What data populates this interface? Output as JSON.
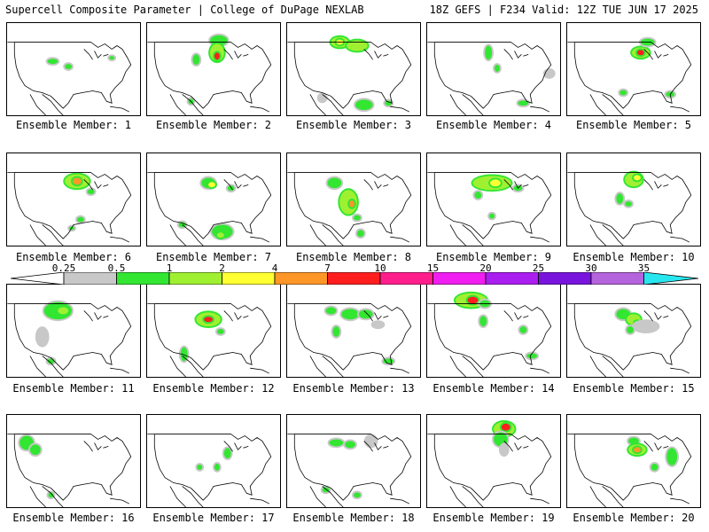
{
  "header": {
    "left": "Supercell Composite Parameter | College of DuPage NEXLAB",
    "right": "18Z GEFS | F234 Valid: 12Z TUE JUN 17 2025"
  },
  "member_prefix": "Ensemble Member: ",
  "members": [
    {
      "label": "Ensemble Member: 1"
    },
    {
      "label": "Ensemble Member: 2"
    },
    {
      "label": "Ensemble Member: 3"
    },
    {
      "label": "Ensemble Member: 4"
    },
    {
      "label": "Ensemble Member: 5"
    },
    {
      "label": "Ensemble Member: 6"
    },
    {
      "label": "Ensemble Member: 7"
    },
    {
      "label": "Ensemble Member: 8"
    },
    {
      "label": "Ensemble Member: 9"
    },
    {
      "label": "Ensemble Member: 10"
    },
    {
      "label": "Ensemble Member: 11"
    },
    {
      "label": "Ensemble Member: 12"
    },
    {
      "label": "Ensemble Member: 13"
    },
    {
      "label": "Ensemble Member: 14"
    },
    {
      "label": "Ensemble Member: 15"
    },
    {
      "label": "Ensemble Member: 16"
    },
    {
      "label": "Ensemble Member: 17"
    },
    {
      "label": "Ensemble Member: 18"
    },
    {
      "label": "Ensemble Member: 19"
    },
    {
      "label": "Ensemble Member: 20"
    }
  ],
  "colorbar": {
    "ticks": [
      "0.25",
      "0.5",
      "1",
      "2",
      "4",
      "7",
      "10",
      "15",
      "20",
      "25",
      "30",
      "35"
    ],
    "colors": [
      "#ffffff",
      "#c8c8c8",
      "#32e632",
      "#a0f032",
      "#ffff32",
      "#ff9628",
      "#ff1e1e",
      "#ff1e8c",
      "#f01ef0",
      "#aa1ef0",
      "#7814dc",
      "#b464dc",
      "#28e6f0"
    ]
  }
}
